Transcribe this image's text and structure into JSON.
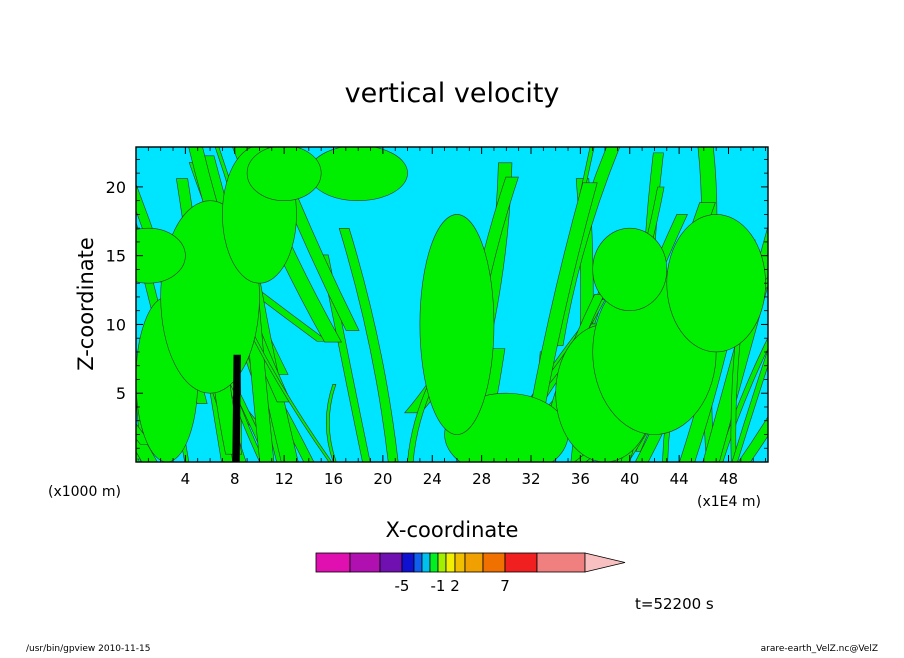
{
  "chart_data": {
    "type": "heatmap",
    "title": "vertical velocity",
    "xlabel": "X-coordinate",
    "ylabel": "Z-coordinate",
    "x_unit_left": "(x1000 m)",
    "x_unit_right": "(x1E4 m)",
    "x_ticks": [
      "4",
      "8",
      "12",
      "16",
      "20",
      "24",
      "28",
      "32",
      "36",
      "40",
      "44",
      "48"
    ],
    "x_tick_values": [
      4,
      8,
      12,
      16,
      20,
      24,
      28,
      32,
      36,
      40,
      44,
      48
    ],
    "y_ticks": [
      "5",
      "10",
      "15",
      "20"
    ],
    "y_tick_values": [
      5,
      10,
      15,
      20
    ],
    "xlim": [
      0,
      51.2
    ],
    "ylim": [
      0,
      22.9
    ],
    "grid": false,
    "colorbar": {
      "colors": [
        "#e010b0",
        "#b010b0",
        "#7010b0",
        "#1010d0",
        "#1060f0",
        "#00c0f0",
        "#00f020",
        "#a0f000",
        "#f0f000",
        "#f0c000",
        "#f0a000",
        "#f07000",
        "#f02020",
        "#f08080",
        "#f8c0c0"
      ],
      "labels": [
        "-5",
        "-1",
        "2",
        "7"
      ],
      "label_after_index": [
        2,
        6,
        8,
        11
      ]
    },
    "colors": {
      "background": "#00e5ff",
      "positive": "#00ef00",
      "strong": "#000000"
    },
    "annotation": "t=52200 s"
  },
  "footer": {
    "left": "/usr/bin/gpview  2010-11-15",
    "right": "arare-earth_VelZ.nc@VelZ"
  }
}
